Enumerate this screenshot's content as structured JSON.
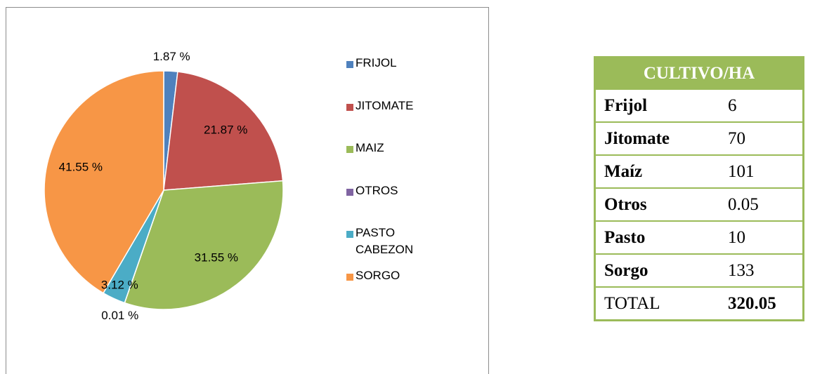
{
  "chart_data": {
    "type": "pie",
    "categories": [
      "FRIJOL",
      "JITOMATE",
      "MAIZ",
      "OTROS",
      "PASTO CABEZON",
      "SORGO"
    ],
    "values": [
      1.87,
      21.87,
      31.55,
      0.01,
      3.12,
      41.55
    ],
    "value_labels": [
      "1.87 %",
      "21.87 %",
      "31.55 %",
      "0.01 %",
      "3.12 %",
      "41.55 %"
    ],
    "colors": [
      "#4f81bd",
      "#c0504d",
      "#9bbb59",
      "#8064a2",
      "#4bacc6",
      "#f79646"
    ],
    "legend": "right"
  },
  "table": {
    "header": "CULTIVO/HA",
    "rows": [
      [
        "Frijol",
        6
      ],
      [
        "Jitomate",
        70
      ],
      [
        "Maíz",
        101
      ],
      [
        "Otros",
        0.05
      ],
      [
        "Pasto",
        10
      ],
      [
        "Sorgo",
        133
      ],
      [
        "TOTAL",
        320.05
      ]
    ]
  }
}
